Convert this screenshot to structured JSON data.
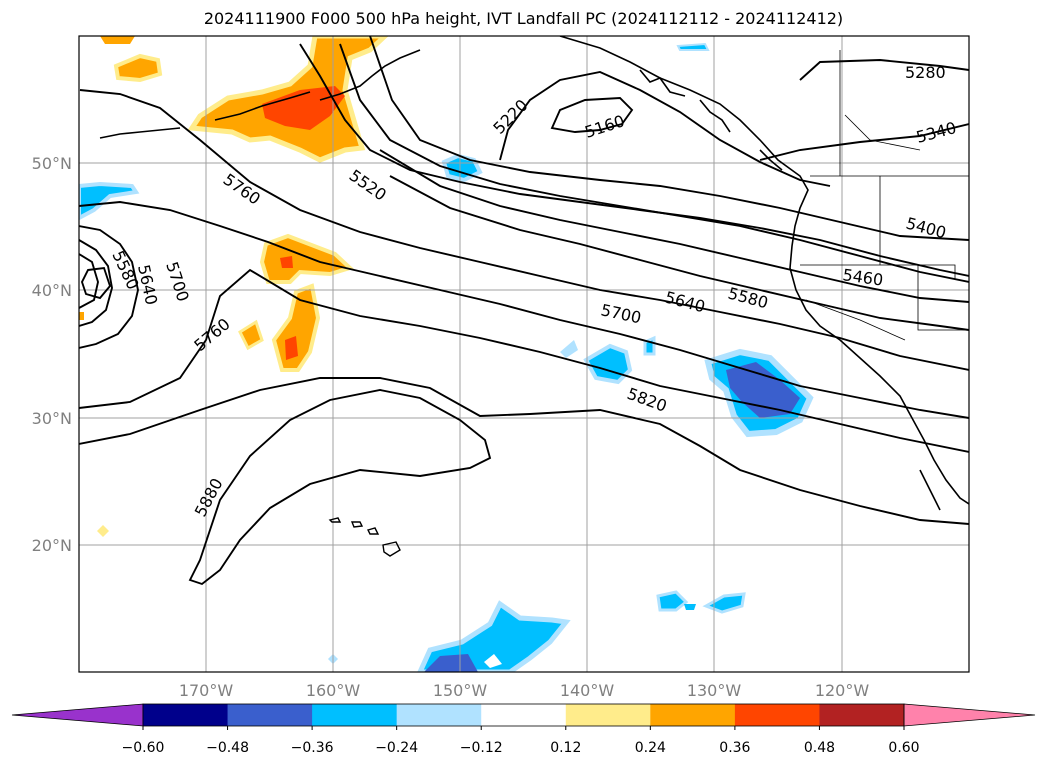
{
  "title": "2024111900 F000 500 hPa height, IVT Landfall PC (2024112112 - 2024112412)",
  "map": {
    "lat_labels": [
      "50°N",
      "40°N",
      "30°N",
      "20°N"
    ],
    "lon_labels": [
      "170°W",
      "160°W",
      "150°W",
      "140°W",
      "130°W",
      "120°W"
    ],
    "contour_labels": [
      "5280",
      "5340",
      "5400",
      "5460",
      "5580",
      "5640",
      "5700",
      "5820",
      "5880",
      "5760",
      "5760",
      "5520",
      "5220",
      "5160",
      "5580",
      "5640",
      "5700"
    ],
    "colors": {
      "coast": "#000000",
      "grid": "#a0a0a0",
      "contour": "#000000"
    }
  },
  "colorbar": {
    "ticks": [
      "−0.60",
      "−0.48",
      "−0.36",
      "−0.24",
      "−0.12",
      "0.12",
      "0.24",
      "0.36",
      "0.48",
      "0.60"
    ],
    "colors": [
      "#9932cc",
      "#00008b",
      "#3a5fcd",
      "#00bfff",
      "#b0e2ff",
      "#ffffff",
      "#ffec8b",
      "#ffa500",
      "#ff4500",
      "#b22222",
      "#ff82ab"
    ]
  }
}
